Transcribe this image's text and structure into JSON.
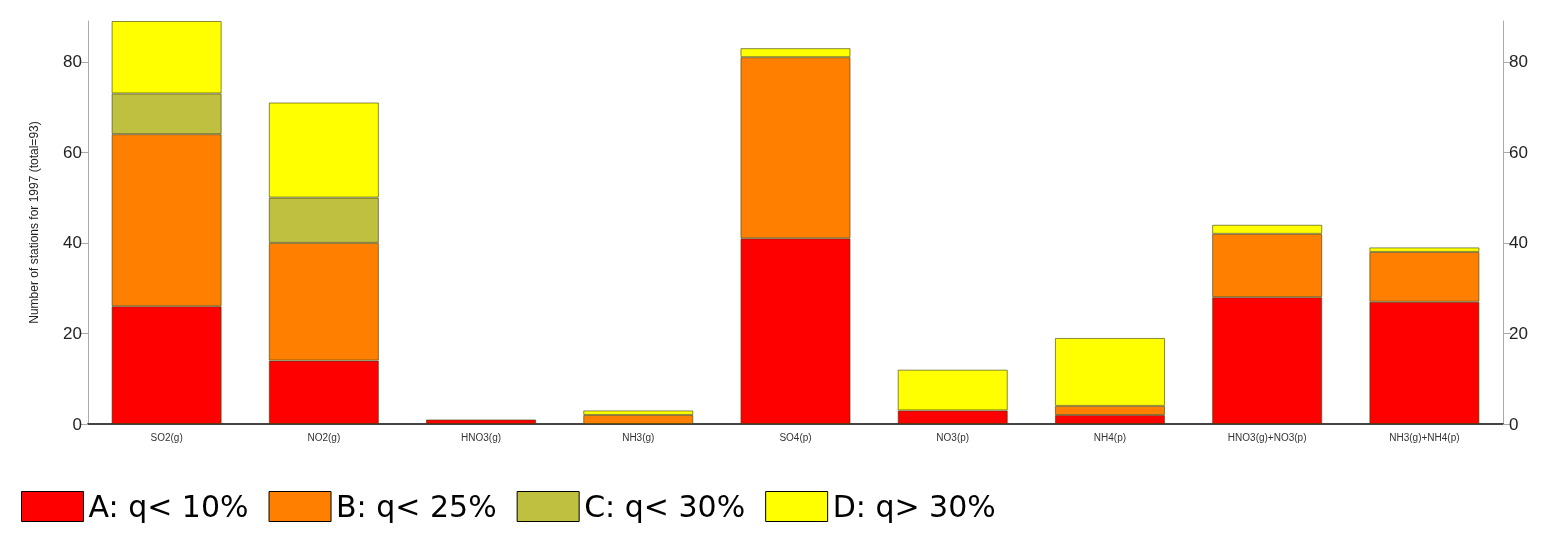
{
  "chart_data": {
    "type": "bar",
    "stacked": true,
    "ylabel": "Number of stations for 1997 (total=93)",
    "categories": [
      "SO2(g)",
      "NO2(g)",
      "HNO3(g)",
      "NH3(g)",
      "SO4(p)",
      "NO3(p)",
      "NH4(p)",
      "HNO3(g)+NO3(p)",
      "NH3(g)+NH4(p)"
    ],
    "series": [
      {
        "name": "A: q< 10%",
        "color": "#ff0000",
        "values": [
          26,
          14,
          1,
          0,
          41,
          3,
          2,
          28,
          27
        ]
      },
      {
        "name": "B: q< 25%",
        "color": "#ff8000",
        "values": [
          38,
          26,
          0,
          2,
          40,
          0,
          2,
          14,
          11
        ]
      },
      {
        "name": "C: q< 30%",
        "color": "#bfbf40",
        "values": [
          9,
          10,
          0,
          0,
          0,
          0,
          0,
          0,
          0
        ]
      },
      {
        "name": "D: q> 30%",
        "color": "#ffff00",
        "values": [
          16,
          21,
          0,
          1,
          2,
          9,
          15,
          2,
          1
        ]
      }
    ],
    "ylim": [
      0,
      89
    ],
    "yticks": [
      0,
      20,
      40,
      60,
      80
    ],
    "y2lim": [
      0,
      89
    ],
    "y2ticks": [
      0,
      20,
      40,
      60,
      80
    ],
    "grid": false,
    "legend": "bottom"
  }
}
